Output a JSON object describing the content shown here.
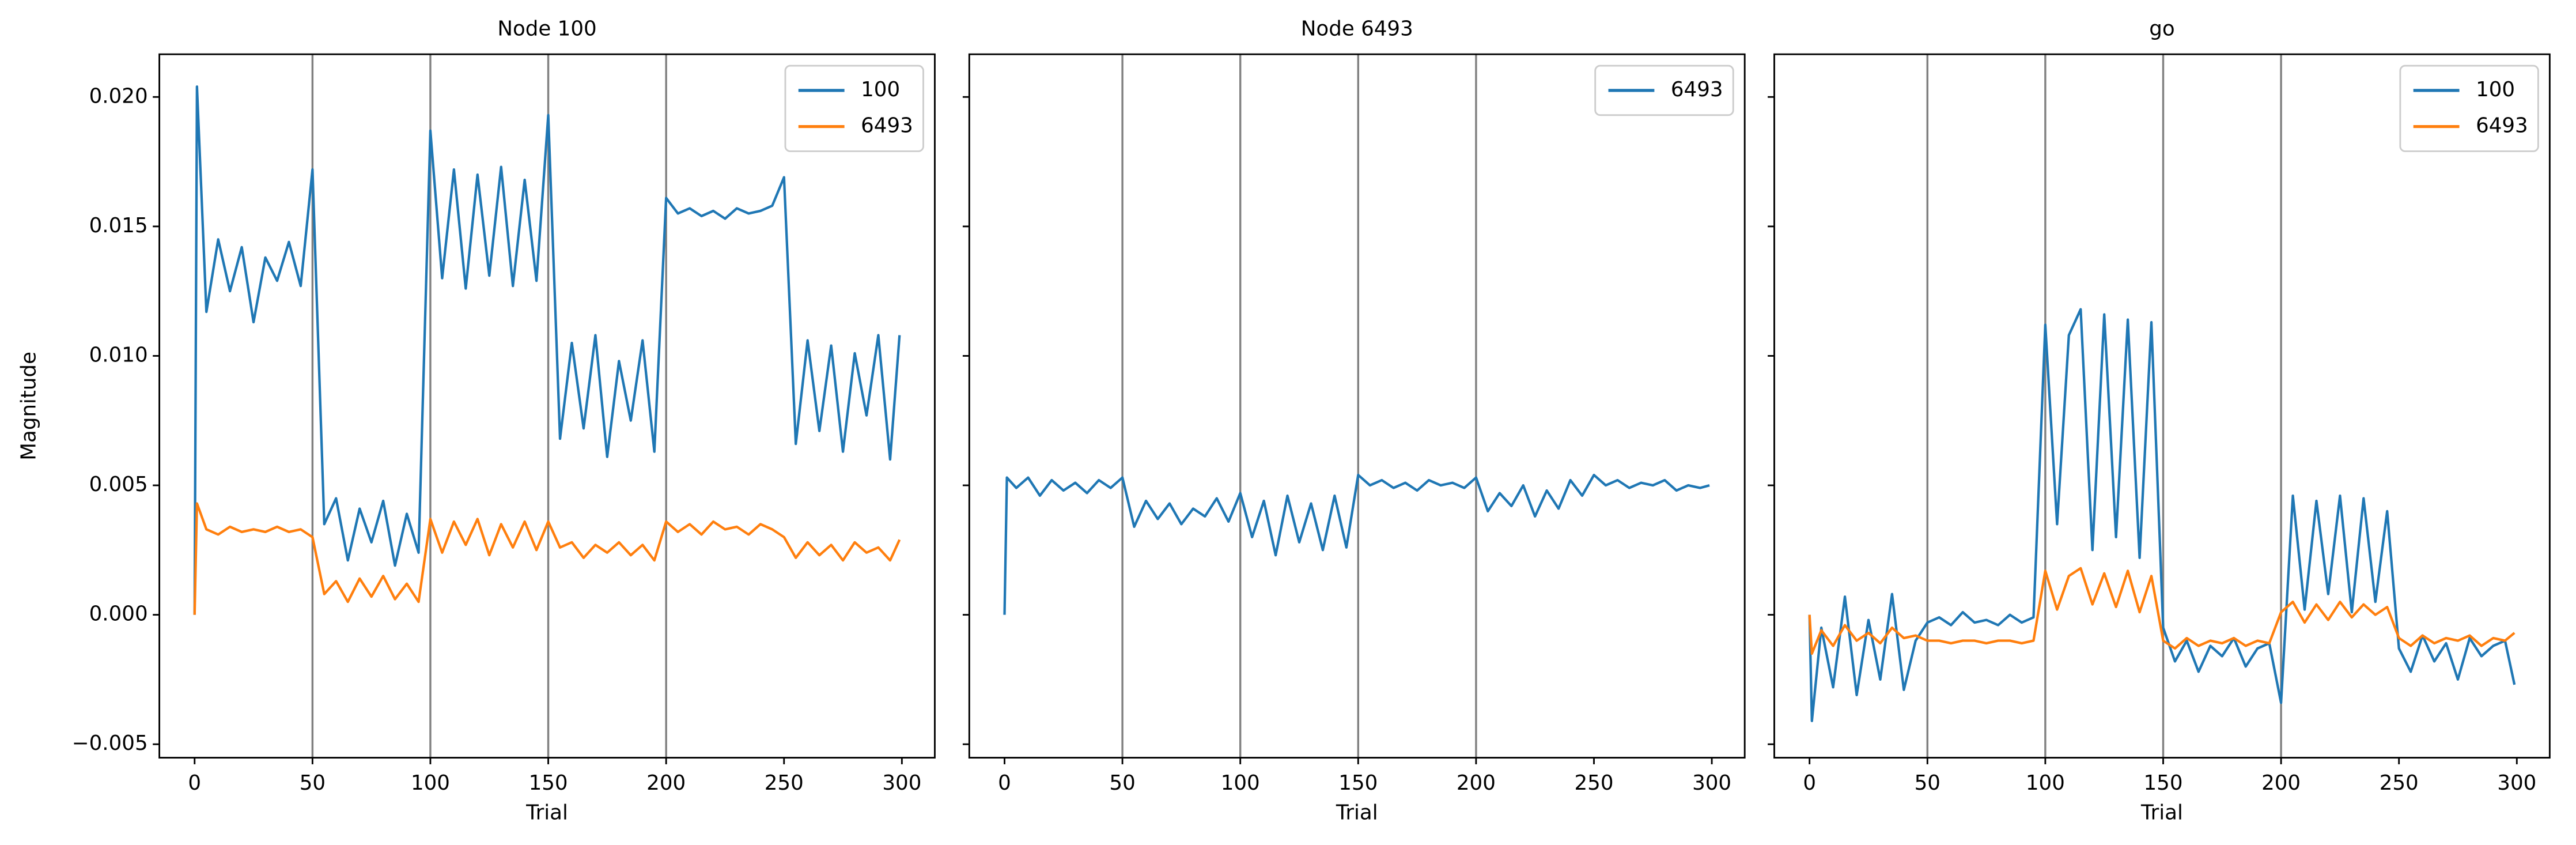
{
  "chart_data": [
    {
      "type": "line",
      "title": "Node 100",
      "xlabel": "Trial",
      "ylabel": "Magnitude",
      "x": [
        0,
        1,
        5,
        10,
        15,
        20,
        25,
        30,
        35,
        40,
        45,
        50,
        55,
        60,
        65,
        70,
        75,
        80,
        85,
        90,
        95,
        100,
        105,
        110,
        115,
        120,
        125,
        130,
        135,
        140,
        145,
        150,
        155,
        160,
        165,
        170,
        175,
        180,
        185,
        190,
        195,
        200,
        205,
        210,
        215,
        220,
        225,
        230,
        235,
        240,
        245,
        250,
        255,
        260,
        265,
        270,
        275,
        280,
        285,
        290,
        295,
        299
      ],
      "series": [
        {
          "name": "100",
          "color": "#1f77b4",
          "values": [
            0.0,
            0.0204,
            0.0117,
            0.0145,
            0.0125,
            0.0142,
            0.0113,
            0.0138,
            0.0129,
            0.0144,
            0.0127,
            0.0172,
            0.0035,
            0.0045,
            0.0021,
            0.0041,
            0.0028,
            0.0044,
            0.0019,
            0.0039,
            0.0024,
            0.0187,
            0.013,
            0.0172,
            0.0126,
            0.017,
            0.0131,
            0.0173,
            0.0127,
            0.0168,
            0.0129,
            0.0193,
            0.0068,
            0.0105,
            0.0072,
            0.0108,
            0.0061,
            0.0098,
            0.0075,
            0.0106,
            0.0063,
            0.0161,
            0.0155,
            0.0157,
            0.0154,
            0.0156,
            0.0153,
            0.0157,
            0.0155,
            0.0156,
            0.0158,
            0.0169,
            0.0066,
            0.0106,
            0.0071,
            0.0104,
            0.0063,
            0.0101,
            0.0077,
            0.0108,
            0.006,
            0.0108
          ]
        },
        {
          "name": "6493",
          "color": "#ff7f0e",
          "values": [
            0.0,
            0.0043,
            0.0033,
            0.0031,
            0.0034,
            0.0032,
            0.0033,
            0.0032,
            0.0034,
            0.0032,
            0.0033,
            0.003,
            0.0008,
            0.0013,
            0.0005,
            0.0014,
            0.0007,
            0.0015,
            0.0006,
            0.0012,
            0.0005,
            0.0037,
            0.0024,
            0.0036,
            0.0027,
            0.0037,
            0.0023,
            0.0035,
            0.0026,
            0.0036,
            0.0025,
            0.0036,
            0.0026,
            0.0028,
            0.0022,
            0.0027,
            0.0024,
            0.0028,
            0.0023,
            0.0027,
            0.0021,
            0.0036,
            0.0032,
            0.0035,
            0.0031,
            0.0036,
            0.0033,
            0.0034,
            0.0031,
            0.0035,
            0.0033,
            0.003,
            0.0022,
            0.0028,
            0.0023,
            0.0027,
            0.0021,
            0.0028,
            0.0024,
            0.0026,
            0.0021,
            0.0029
          ]
        }
      ],
      "xlim": [
        -14.95,
        313.95
      ],
      "xticks": [
        0,
        50,
        100,
        150,
        200,
        250,
        300
      ],
      "ylim": [
        -0.00552,
        0.02165
      ],
      "yticks": [
        {
          "value": -0.005,
          "label": "−0.005"
        },
        {
          "value": 0,
          "label": "0.000"
        },
        0.005,
        {
          "value": 0.01,
          "label": "0.010"
        },
        0.015,
        {
          "value": 0.02,
          "label": "0.020"
        }
      ],
      "vlines": [
        50,
        100,
        150,
        200
      ],
      "legend": "upper right"
    },
    {
      "type": "line",
      "title": "Node 6493",
      "xlabel": "Trial",
      "x": [
        0,
        1,
        5,
        10,
        15,
        20,
        25,
        30,
        35,
        40,
        45,
        50,
        55,
        60,
        65,
        70,
        75,
        80,
        85,
        90,
        95,
        100,
        105,
        110,
        115,
        120,
        125,
        130,
        135,
        140,
        145,
        150,
        155,
        160,
        165,
        170,
        175,
        180,
        185,
        190,
        195,
        200,
        205,
        210,
        215,
        220,
        225,
        230,
        235,
        240,
        245,
        250,
        255,
        260,
        265,
        270,
        275,
        280,
        285,
        290,
        295,
        299
      ],
      "series": [
        {
          "name": "6493",
          "color": "#1f77b4",
          "values": [
            0.0,
            0.0053,
            0.0049,
            0.0053,
            0.0046,
            0.0052,
            0.0048,
            0.0051,
            0.0047,
            0.0052,
            0.0049,
            0.0053,
            0.0034,
            0.0044,
            0.0037,
            0.0043,
            0.0035,
            0.0041,
            0.0038,
            0.0045,
            0.0036,
            0.0047,
            0.003,
            0.0044,
            0.0023,
            0.0046,
            0.0028,
            0.0043,
            0.0025,
            0.0046,
            0.0026,
            0.0054,
            0.005,
            0.0052,
            0.0049,
            0.0051,
            0.0048,
            0.0052,
            0.005,
            0.0051,
            0.0049,
            0.0053,
            0.004,
            0.0047,
            0.0042,
            0.005,
            0.0038,
            0.0048,
            0.0041,
            0.0052,
            0.0046,
            0.0054,
            0.005,
            0.0052,
            0.0049,
            0.0051,
            0.005,
            0.0052,
            0.0048,
            0.005,
            0.0049,
            0.005
          ]
        }
      ],
      "xlim": [
        -14.95,
        313.95
      ],
      "xticks": [
        0,
        50,
        100,
        150,
        200,
        250,
        300
      ],
      "vlines": [
        50,
        100,
        150,
        200
      ],
      "legend": "upper right"
    },
    {
      "type": "line",
      "title": "go",
      "xlabel": "Trial",
      "x": [
        0,
        1,
        5,
        10,
        15,
        20,
        25,
        30,
        35,
        40,
        45,
        50,
        55,
        60,
        65,
        70,
        75,
        80,
        85,
        90,
        95,
        100,
        105,
        110,
        115,
        120,
        125,
        130,
        135,
        140,
        145,
        150,
        155,
        160,
        165,
        170,
        175,
        180,
        185,
        190,
        195,
        200,
        205,
        210,
        215,
        220,
        225,
        230,
        235,
        240,
        245,
        250,
        255,
        260,
        265,
        270,
        275,
        280,
        285,
        290,
        295,
        299
      ],
      "series": [
        {
          "name": "100",
          "color": "#1f77b4",
          "values": [
            0.0,
            -0.0041,
            -0.0005,
            -0.0028,
            0.0007,
            -0.0031,
            -0.0002,
            -0.0025,
            0.0008,
            -0.0029,
            -0.001,
            -0.0003,
            -0.0001,
            -0.0004,
            0.0001,
            -0.0003,
            -0.0002,
            -0.0004,
            0.0,
            -0.0003,
            -0.0001,
            0.0112,
            0.0035,
            0.0108,
            0.0118,
            0.0025,
            0.0116,
            0.003,
            0.0114,
            0.0022,
            0.0113,
            -0.0005,
            -0.0018,
            -0.001,
            -0.0022,
            -0.0012,
            -0.0016,
            -0.0009,
            -0.002,
            -0.0013,
            -0.0011,
            -0.0034,
            0.0046,
            0.0002,
            0.0044,
            0.0008,
            0.0046,
            0.0001,
            0.0045,
            0.0005,
            0.004,
            -0.0013,
            -0.0022,
            -0.0008,
            -0.0018,
            -0.0011,
            -0.0025,
            -0.0009,
            -0.0016,
            -0.0012,
            -0.001,
            -0.0027
          ]
        },
        {
          "name": "6493",
          "color": "#ff7f0e",
          "values": [
            0.0,
            -0.0015,
            -0.0006,
            -0.0012,
            -0.0004,
            -0.001,
            -0.0007,
            -0.0011,
            -0.0005,
            -0.0009,
            -0.0008,
            -0.001,
            -0.001,
            -0.0011,
            -0.001,
            -0.001,
            -0.0011,
            -0.001,
            -0.001,
            -0.0011,
            -0.001,
            0.0017,
            0.0002,
            0.0015,
            0.0018,
            0.0004,
            0.0016,
            0.0003,
            0.0017,
            0.0001,
            0.0015,
            -0.001,
            -0.0013,
            -0.0009,
            -0.0012,
            -0.001,
            -0.0011,
            -0.0009,
            -0.0012,
            -0.001,
            -0.0011,
            0.0001,
            0.0005,
            -0.0003,
            0.0004,
            -0.0002,
            0.0005,
            -0.0001,
            0.0004,
            0.0,
            0.0003,
            -0.0009,
            -0.0012,
            -0.0008,
            -0.0011,
            -0.0009,
            -0.001,
            -0.0008,
            -0.0012,
            -0.0009,
            -0.001,
            -0.0007
          ]
        }
      ],
      "xlim": [
        -14.95,
        313.95
      ],
      "xticks": [
        0,
        50,
        100,
        150,
        200,
        250,
        300
      ],
      "vlines": [
        50,
        100,
        150,
        200
      ],
      "legend": "upper right"
    }
  ]
}
